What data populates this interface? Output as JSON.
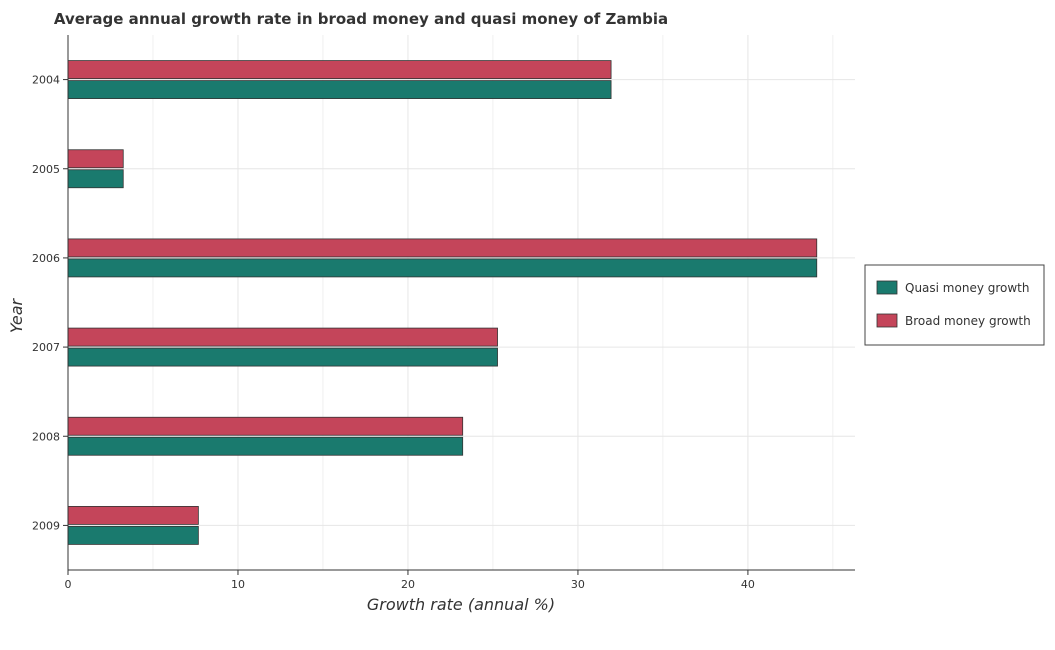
{
  "chart_data": {
    "type": "bar",
    "orientation": "horizontal",
    "title": "Average annual growth rate in broad money and quasi money of Zambia",
    "xlabel": "Growth rate (annual %)",
    "ylabel": "Year",
    "categories": [
      "2004",
      "2005",
      "2006",
      "2007",
      "2008",
      "2009"
    ],
    "series": [
      {
        "name": "Quasi money growth",
        "color": "#1a7a6e",
        "values": [
          31.95,
          3.25,
          44.05,
          25.27,
          23.22,
          7.67
        ]
      },
      {
        "name": "Broad money growth",
        "color": "#c4455a",
        "values": [
          31.95,
          3.25,
          44.05,
          25.27,
          23.22,
          7.67
        ]
      }
    ],
    "xlim": [
      0,
      46.3
    ],
    "xticks": [
      0,
      10,
      20,
      30,
      40
    ],
    "grid": true,
    "legend_position": "right"
  }
}
